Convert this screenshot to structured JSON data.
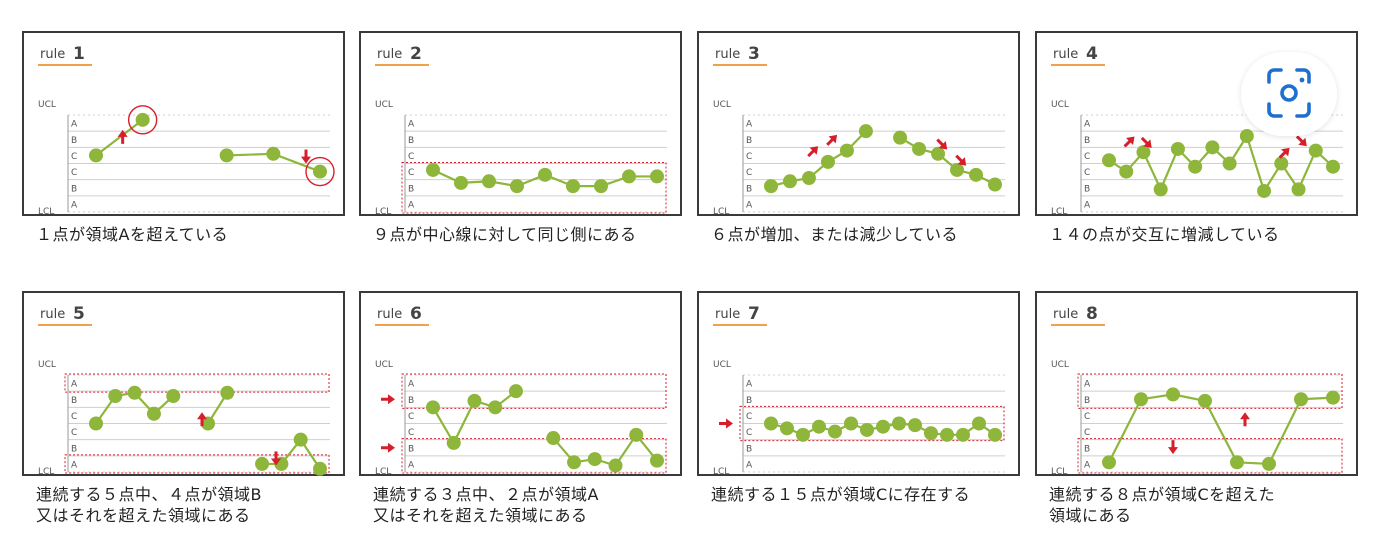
{
  "colors": {
    "series": "#8db63b",
    "alert": "#d71f2b",
    "grid": "#cfcfcf",
    "underline": "#f0a24a",
    "lens": "#1f6fd1"
  },
  "zone_labels": {
    "ucl": "UCL",
    "lcl": "LCL",
    "zones": [
      "A",
      "B",
      "C",
      "C",
      "B",
      "A"
    ]
  },
  "lens_icon": "camera-search-icon",
  "rules": [
    {
      "title_prefix": "rule",
      "number": "1",
      "caption": "１点が領域Aを超えている",
      "segments": [
        [
          3.5,
          5.7
        ],
        [
          3.5,
          3.6,
          2.5
        ]
      ],
      "circled": [
        [
          0,
          1
        ],
        [
          1,
          2
        ]
      ],
      "bands": [],
      "arrows": [
        {
          "dir": "up",
          "at": [
            0,
            1
          ]
        },
        {
          "dir": "down",
          "at": [
            1,
            2
          ]
        }
      ]
    },
    {
      "title_prefix": "rule",
      "number": "2",
      "caption": "９点が中心線に対して同じ側にある",
      "segments": [
        [
          2.6,
          1.8,
          1.9,
          1.6,
          2.3,
          1.6,
          1.6,
          2.2,
          2.2
        ]
      ],
      "circled": [],
      "bands": [
        [
          0,
          3
        ]
      ],
      "arrows": []
    },
    {
      "title_prefix": "rule",
      "number": "3",
      "caption": "６点が増加、または減少している",
      "segments": [
        [
          1.6,
          1.9,
          2.1,
          3.1,
          3.8,
          5.0
        ],
        [
          4.6,
          3.9,
          3.6,
          2.6,
          2.3,
          1.7
        ]
      ],
      "circled": [],
      "bands": [],
      "arrows": [
        {
          "dir": "ne",
          "at": [
            0,
            2
          ]
        },
        {
          "dir": "ne",
          "at": [
            0,
            3
          ]
        },
        {
          "dir": "se",
          "at": [
            1,
            2
          ]
        },
        {
          "dir": "se",
          "at": [
            1,
            3
          ]
        }
      ]
    },
    {
      "title_prefix": "rule",
      "number": "4",
      "caption": "１４の点が交互に増減している",
      "segments": [
        [
          3.2,
          2.5,
          3.7,
          1.4,
          3.9,
          2.8,
          4.0,
          3.0,
          4.7,
          1.3,
          3.0,
          1.4,
          3.8,
          2.8
        ]
      ],
      "circled": [],
      "bands": [],
      "arrows": [
        {
          "dir": "ne",
          "at": [
            0,
            1
          ]
        },
        {
          "dir": "se",
          "at": [
            0,
            2
          ]
        },
        {
          "dir": "ne",
          "at": [
            0,
            10
          ]
        },
        {
          "dir": "se",
          "at": [
            0,
            11
          ]
        }
      ]
    },
    {
      "title_prefix": "rule",
      "number": "5",
      "caption": "連続する５点中、４点が領域B\n又はそれを超えた領域にある",
      "segments": [
        [
          3.0,
          4.7,
          4.9,
          3.6,
          4.7
        ],
        [
          3.0,
          4.9
        ],
        [
          0.5,
          0.5,
          2.0,
          0.2
        ]
      ],
      "circled": [],
      "bands": [
        [
          5,
          6
        ],
        [
          0,
          1
        ]
      ],
      "arrows": [
        {
          "dir": "up",
          "at": [
            0,
            2
          ]
        },
        {
          "dir": "down",
          "at": [
            2,
            0
          ]
        }
      ]
    },
    {
      "title_prefix": "rule",
      "number": "6",
      "caption": "連続する３点中、２点が領域A\n又はそれを超えた領域にある",
      "segments": [
        [
          4.0,
          1.8,
          4.4,
          4.0,
          5.0
        ],
        [
          2.1,
          0.6,
          0.8,
          0.4,
          2.3,
          0.7
        ]
      ],
      "circled": [],
      "bands": [
        [
          4,
          6
        ],
        [
          0,
          2
        ]
      ],
      "arrows": [
        {
          "dir": "right",
          "at": "upper"
        },
        {
          "dir": "right",
          "at": "lower"
        }
      ]
    },
    {
      "title_prefix": "rule",
      "number": "7",
      "caption": "連続する１５点が領域Cに存在する",
      "segments": [
        [
          3.0,
          2.7,
          2.3,
          2.8,
          2.5,
          3.0,
          2.6,
          2.8,
          3.0,
          2.9,
          2.4,
          2.3,
          2.3,
          3.0,
          2.3
        ]
      ],
      "circled": [],
      "bands": [
        [
          2,
          4
        ]
      ],
      "arrows": [
        {
          "dir": "right",
          "at": "mid"
        }
      ]
    },
    {
      "title_prefix": "rule",
      "number": "8",
      "caption": "連続する８点が領域Cを超えた\n領域にある",
      "segments": [
        [
          0.6,
          4.5,
          4.8,
          4.4,
          0.6,
          0.5,
          4.5,
          4.6
        ]
      ],
      "circled": [],
      "bands": [
        [
          4,
          6
        ],
        [
          0,
          2
        ]
      ],
      "arrows": [
        {
          "dir": "up",
          "at": [
            0,
            3
          ]
        },
        {
          "dir": "down",
          "at": [
            0,
            1
          ]
        }
      ]
    }
  ]
}
